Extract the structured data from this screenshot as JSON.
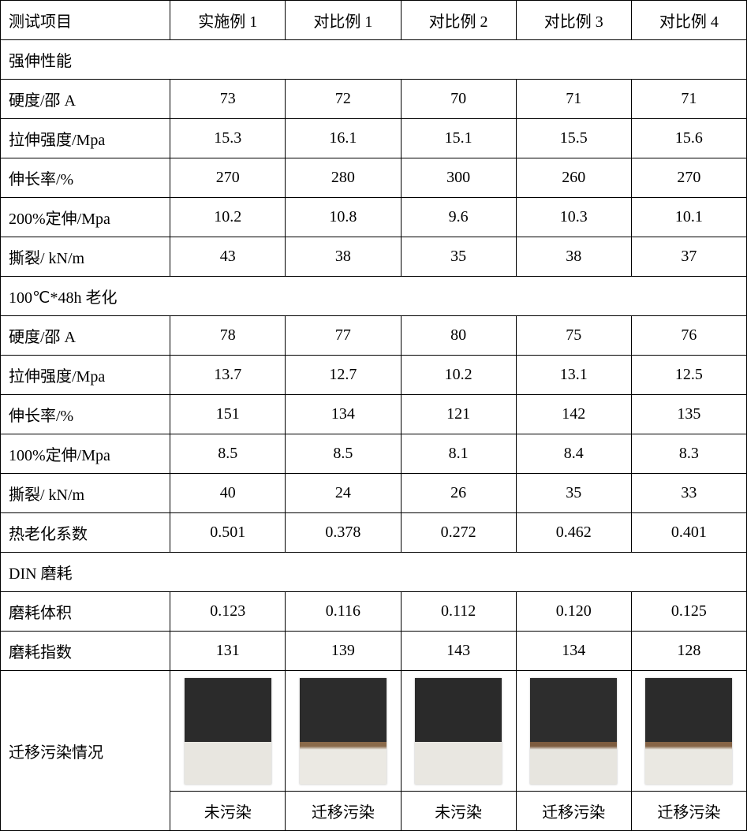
{
  "header": {
    "test_item": "测试项目",
    "cols": [
      "实施例 1",
      "对比例 1",
      "对比例 2",
      "对比例 3",
      "对比例 4"
    ]
  },
  "sections": {
    "tensile": {
      "title": "强伸性能",
      "rows": [
        {
          "label": "硬度/邵 A",
          "values": [
            "73",
            "72",
            "70",
            "71",
            "71"
          ]
        },
        {
          "label": "拉伸强度/Mpa",
          "values": [
            "15.3",
            "16.1",
            "15.1",
            "15.5",
            "15.6"
          ]
        },
        {
          "label": "伸长率/%",
          "values": [
            "270",
            "280",
            "300",
            "260",
            "270"
          ]
        },
        {
          "label": "200%定伸/Mpa",
          "values": [
            "10.2",
            "10.8",
            "9.6",
            "10.3",
            "10.1"
          ]
        },
        {
          "label": "撕裂/ kN/m",
          "values": [
            "43",
            "38",
            "35",
            "38",
            "37"
          ]
        }
      ]
    },
    "aging": {
      "title": "100℃*48h 老化",
      "rows": [
        {
          "label": "硬度/邵 A",
          "values": [
            "78",
            "77",
            "80",
            "75",
            "76"
          ]
        },
        {
          "label": "拉伸强度/Mpa",
          "values": [
            "13.7",
            "12.7",
            "10.2",
            "13.1",
            "12.5"
          ]
        },
        {
          "label": "伸长率/%",
          "values": [
            "151",
            "134",
            "121",
            "142",
            "135"
          ]
        },
        {
          "label": "100%定伸/Mpa",
          "values": [
            "8.5",
            "8.5",
            "8.1",
            "8.4",
            "8.3"
          ]
        },
        {
          "label": "撕裂/ kN/m",
          "values": [
            "40",
            "24",
            "26",
            "35",
            "33"
          ]
        },
        {
          "label": "热老化系数",
          "values": [
            "0.501",
            "0.378",
            "0.272",
            "0.462",
            "0.401"
          ]
        }
      ]
    },
    "din": {
      "title": "DIN 磨耗",
      "rows": [
        {
          "label": "磨耗体积",
          "values": [
            "0.123",
            "0.116",
            "0.112",
            "0.120",
            "0.125"
          ]
        },
        {
          "label": "磨耗指数",
          "values": [
            "131",
            "139",
            "143",
            "134",
            "128"
          ]
        }
      ]
    },
    "migration": {
      "label": "迁移污染情况",
      "swatches": [
        {
          "top_color": "#2b2b2b",
          "bottom_color": "#e8e6e0",
          "stain_band": null
        },
        {
          "top_color": "#2c2c2c",
          "bottom_color": "#ebe9e3",
          "stain_band": "#8a6a4a"
        },
        {
          "top_color": "#2a2a2a",
          "bottom_color": "#e9e7e1",
          "stain_band": null
        },
        {
          "top_color": "#2d2d2d",
          "bottom_color": "#e7e5df",
          "stain_band": "#7d5c3f"
        },
        {
          "top_color": "#2b2b2b",
          "bottom_color": "#eae8e2",
          "stain_band": "#866446"
        }
      ],
      "captions": [
        "未污染",
        "迁移污染",
        "未污染",
        "迁移污染",
        "迁移污染"
      ]
    }
  }
}
